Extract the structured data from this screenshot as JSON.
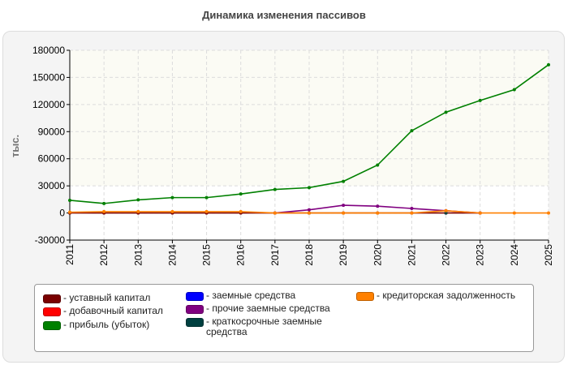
{
  "title": "Динамика изменения пассивов",
  "chart_data": {
    "type": "line",
    "ylabel": "тыс.",
    "xlabel": "",
    "x": [
      "2011",
      "2012",
      "2013",
      "2014",
      "2015",
      "2016",
      "2017",
      "2018",
      "2019",
      "2020",
      "2021",
      "2022",
      "2023",
      "2024",
      "2025"
    ],
    "ylim": [
      -30000,
      180000
    ],
    "yticks": [
      -30000,
      0,
      30000,
      60000,
      90000,
      120000,
      150000,
      180000
    ],
    "grid": true,
    "legend_position": "bottom",
    "series": [
      {
        "name": "- уставный капитал",
        "color": "#7a0000",
        "values": [
          0,
          0,
          0,
          0,
          0,
          0,
          0,
          0,
          0,
          0,
          0,
          0,
          0,
          null,
          null
        ]
      },
      {
        "name": "- добавочный капитал",
        "color": "#ff0000",
        "values": [
          null,
          null,
          null,
          null,
          null,
          null,
          null,
          null,
          null,
          null,
          null,
          null,
          null,
          null,
          null
        ]
      },
      {
        "name": "- прибыль (убыток)",
        "color": "#008000",
        "values": [
          14000,
          10500,
          14500,
          17000,
          17000,
          21000,
          26000,
          28000,
          35000,
          53000,
          91000,
          111500,
          124500,
          136500,
          164000
        ]
      },
      {
        "name": "- заемные средства",
        "color": "#0000ff",
        "values": [
          null,
          null,
          null,
          null,
          null,
          null,
          null,
          null,
          null,
          null,
          null,
          null,
          null,
          null,
          null
        ]
      },
      {
        "name": "- прочие заемные средства",
        "color": "#800080",
        "values": [
          null,
          null,
          null,
          null,
          null,
          null,
          0,
          3500,
          8500,
          7500,
          5000,
          2500,
          0,
          null,
          null
        ]
      },
      {
        "name": "- краткосрочные заемные средства",
        "color": "#004040",
        "values": [
          null,
          null,
          null,
          null,
          null,
          null,
          null,
          0,
          null,
          null,
          null,
          0,
          null,
          null,
          null
        ]
      },
      {
        "name": "- кредиторская задолженность",
        "color": "#ff8000",
        "values": [
          800,
          1500,
          1500,
          1500,
          1500,
          1500,
          0,
          0,
          0,
          0,
          0,
          2500,
          0,
          0,
          0
        ]
      }
    ]
  }
}
